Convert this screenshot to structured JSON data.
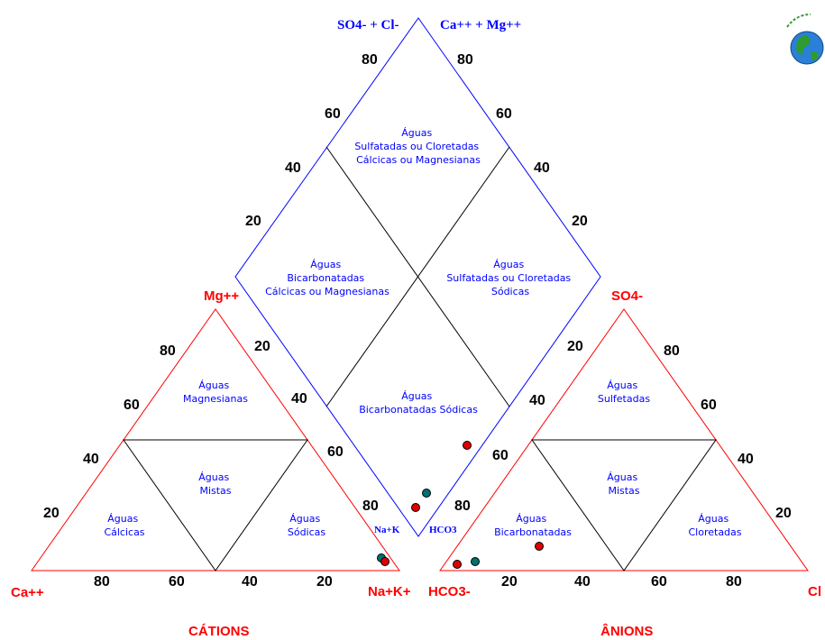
{
  "colors": {
    "diamond": "#0000ff",
    "triangles": "#ff0000",
    "dividers": "#000000",
    "point_red": "#dd0000",
    "point_teal": "#007070"
  },
  "logo_icon": "globe-icon",
  "diamond": {
    "top_left_ions": "SO4- + Cl-",
    "top_right_ions": "Ca++ + Mg++",
    "left_ticks": [
      "80",
      "60",
      "40",
      "20"
    ],
    "right_ticks": [
      "80",
      "60",
      "40",
      "20"
    ],
    "lower_left_ticks": [
      "20",
      "40",
      "60",
      "80"
    ],
    "lower_right_ticks": [
      "20",
      "40",
      "60",
      "80"
    ],
    "zone_top": [
      "Águas",
      "Sulfatadas ou Cloretadas",
      "Cálcicas ou Magnesianas"
    ],
    "zone_left": [
      "Águas",
      "Bicarbonatadas",
      "Cálcicas ou Magnesianas"
    ],
    "zone_right": [
      "Águas",
      "Sulfatadas ou Cloretadas",
      "Sódicas"
    ],
    "zone_bottom": [
      "Águas",
      "Bicarbonatadas Sódicas"
    ],
    "label_nak": "Na+K",
    "label_hco3": "HCO3"
  },
  "cation_triangle": {
    "title": "CÁTIONS",
    "apex_label": "Mg++",
    "left_label": "Ca++",
    "right_label": "Na+K+",
    "left_ticks": [
      "80",
      "60",
      "40",
      "20"
    ],
    "bottom_ticks": [
      "80",
      "60",
      "40",
      "20"
    ],
    "zone_top": [
      "Águas",
      "Magnesianas"
    ],
    "zone_center": [
      "Águas",
      "Mistas"
    ],
    "zone_left": [
      "Águas",
      "Cálcicas"
    ],
    "zone_right": [
      "Águas",
      "Sódicas"
    ]
  },
  "anion_triangle": {
    "title": "ÂNIONS",
    "apex_label": "SO4-",
    "left_label": "HCO3-",
    "right_label": "Cl",
    "right_ticks": [
      "80",
      "60",
      "40",
      "20"
    ],
    "bottom_ticks": [
      "20",
      "40",
      "60",
      "80"
    ],
    "zone_top": [
      "Águas",
      "Sulfetadas"
    ],
    "zone_center": [
      "Águas",
      "Mistas"
    ],
    "zone_left": [
      "Águas",
      "Bicarbonatadas"
    ],
    "zone_right": [
      "Águas",
      "Cloretadas"
    ]
  }
}
